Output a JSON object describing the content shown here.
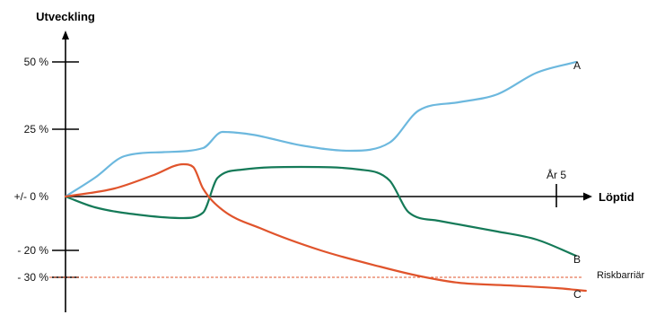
{
  "chart_data": {
    "type": "line",
    "title": "",
    "ylabel": "Utveckling",
    "xlabel": "Löptid",
    "ylim": [
      -33,
      60
    ],
    "xlim": [
      0,
      5.5
    ],
    "y_ticks": [
      {
        "value": 50,
        "label": "50 %"
      },
      {
        "value": 25,
        "label": "25 %"
      },
      {
        "value": 0,
        "label": "+/- 0 %"
      },
      {
        "value": -20,
        "label": "- 20 %"
      },
      {
        "value": -30,
        "label": "- 30 %"
      }
    ],
    "x_marker": {
      "value": 5,
      "label": "År 5"
    },
    "barrier": {
      "value": -30,
      "label": "Riskbarriär",
      "color": "#e0542c"
    },
    "grid": false,
    "series": [
      {
        "name": "A",
        "color": "#6cb8de",
        "x": [
          0,
          0.3,
          0.6,
          1.0,
          1.4,
          1.6,
          1.9,
          2.4,
          2.9,
          3.3,
          3.6,
          4.0,
          4.4,
          4.8,
          5.2
        ],
        "y": [
          0,
          7,
          15,
          16.5,
          18,
          24,
          23,
          19,
          17,
          20,
          32,
          35,
          38,
          46,
          50
        ]
      },
      {
        "name": "B",
        "color": "#157a58",
        "x": [
          0,
          0.3,
          0.8,
          1.2,
          1.4,
          1.55,
          1.8,
          2.4,
          3.0,
          3.3,
          3.5,
          3.8,
          4.4,
          4.8,
          5.2
        ],
        "y": [
          0,
          -4,
          -7,
          -8,
          -6,
          7,
          10,
          11,
          10,
          6,
          -6,
          -9,
          -13,
          -16,
          -22
        ]
      },
      {
        "name": "C",
        "color": "#e0542c",
        "x": [
          0,
          0.5,
          0.9,
          1.2,
          1.3,
          1.4,
          1.6,
          2.0,
          2.6,
          3.2,
          3.6,
          4.0,
          4.5,
          5.0,
          5.3
        ],
        "y": [
          0,
          3,
          8,
          12,
          11,
          3,
          -5,
          -12,
          -20,
          -26,
          -29.5,
          -32,
          -33,
          -34,
          -35
        ]
      }
    ]
  }
}
